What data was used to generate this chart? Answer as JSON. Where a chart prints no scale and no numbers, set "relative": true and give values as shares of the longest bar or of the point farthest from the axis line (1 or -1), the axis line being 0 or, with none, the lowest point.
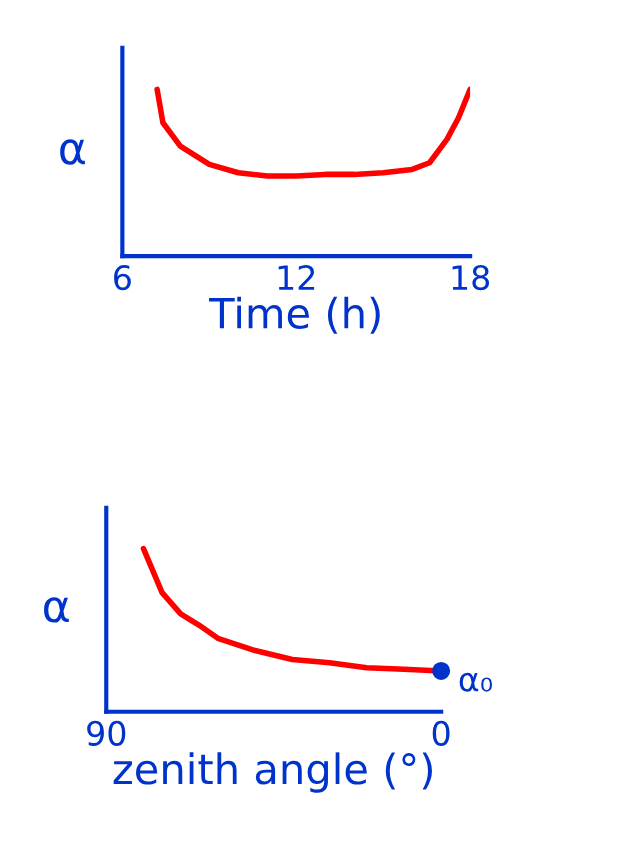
{
  "chart_data": [
    {
      "type": "line",
      "xlabel": "Time (h)",
      "ylabel": "α",
      "relative": true,
      "xlim": [
        6,
        18
      ],
      "xticks": [
        6,
        12,
        18
      ],
      "grid": false,
      "legend": false,
      "series": [
        {
          "color": "#ff0000",
          "x": [
            7.2,
            7.4,
            8,
            9,
            10,
            11,
            12,
            13,
            14,
            15,
            16,
            16.6,
            17.2,
            17.6,
            18
          ],
          "values": [
            1.0,
            0.8,
            0.66,
            0.55,
            0.5,
            0.48,
            0.48,
            0.49,
            0.49,
            0.5,
            0.52,
            0.56,
            0.7,
            0.83,
            1.0
          ]
        }
      ]
    },
    {
      "type": "line",
      "xlabel": "zenith angle (°)",
      "ylabel": "α",
      "relative": true,
      "xlim": [
        90,
        0
      ],
      "xticks": [
        90,
        0
      ],
      "grid": false,
      "legend": false,
      "annotations": [
        {
          "text": "α₀",
          "x": 0,
          "y": 0.25
        }
      ],
      "series": [
        {
          "color": "#ff0000",
          "x": [
            80,
            75,
            70,
            65,
            60,
            50,
            40,
            30,
            20,
            10,
            0
          ],
          "values": [
            1.0,
            0.73,
            0.6,
            0.53,
            0.45,
            0.375,
            0.32,
            0.3,
            0.27,
            0.26,
            0.25
          ]
        },
        {
          "type": "scatter",
          "color": "#0033cc",
          "x": [
            0
          ],
          "values": [
            0.25
          ]
        }
      ]
    }
  ]
}
